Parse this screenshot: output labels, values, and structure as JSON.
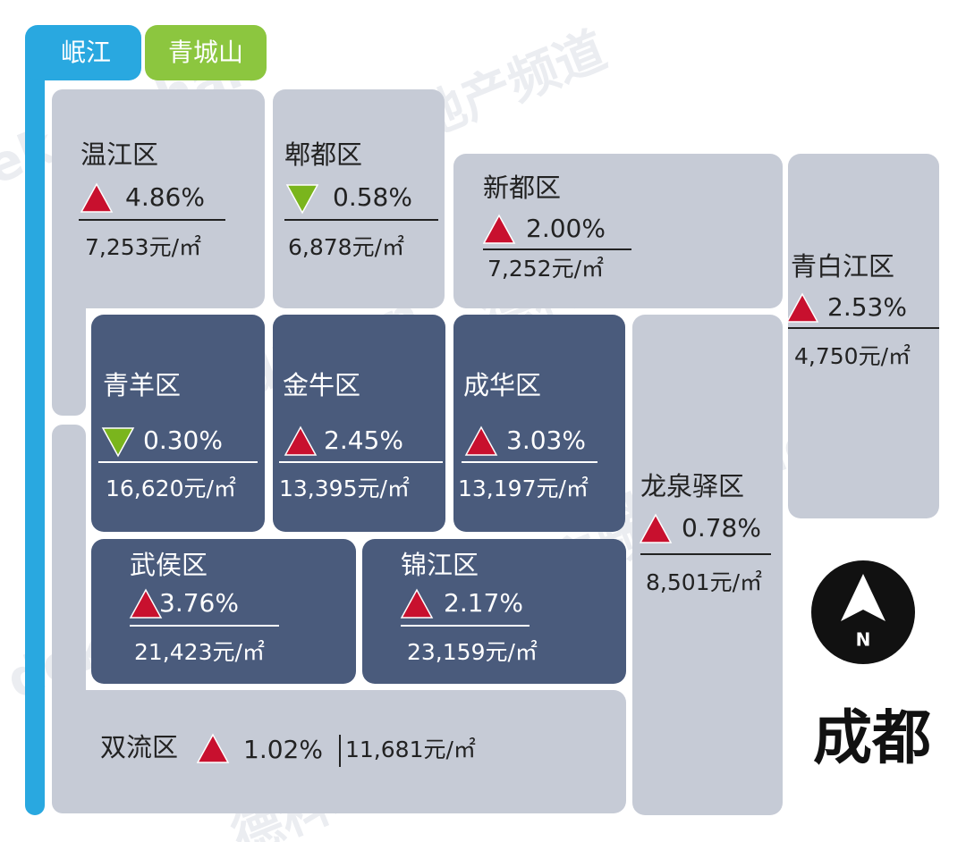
{
  "rivers": [
    "岷江",
    "青城山"
  ],
  "city": "成都",
  "compass": "N",
  "watermark": [
    "dekedichan",
    "德科地产频道"
  ],
  "districts": [
    {
      "name": "温江区",
      "trend": "up",
      "change": "4.86%",
      "price": "7,253元/㎡"
    },
    {
      "name": "郫都区",
      "trend": "down",
      "change": "0.58%",
      "price": "6,878元/㎡"
    },
    {
      "name": "新都区",
      "trend": "up",
      "change": "2.00%",
      "price": "7,252元/㎡"
    },
    {
      "name": "青白江区",
      "trend": "up",
      "change": "2.53%",
      "price": "4,750元/㎡"
    },
    {
      "name": "青羊区",
      "trend": "down",
      "change": "0.30%",
      "price": "16,620元/㎡"
    },
    {
      "name": "金牛区",
      "trend": "up",
      "change": "2.45%",
      "price": "13,395元/㎡"
    },
    {
      "name": "成华区",
      "trend": "up",
      "change": "3.03%",
      "price": "13,197元/㎡"
    },
    {
      "name": "龙泉驿区",
      "trend": "up",
      "change": "0.78%",
      "price": "8,501元/㎡"
    },
    {
      "name": "武侯区",
      "trend": "up",
      "change": "3.76%",
      "price": "21,423元/㎡"
    },
    {
      "name": "锦江区",
      "trend": "up",
      "change": "2.17%",
      "price": "23,159元/㎡"
    },
    {
      "name": "双流区",
      "trend": "up",
      "change": "1.02%",
      "price": "11,681元/㎡"
    }
  ]
}
